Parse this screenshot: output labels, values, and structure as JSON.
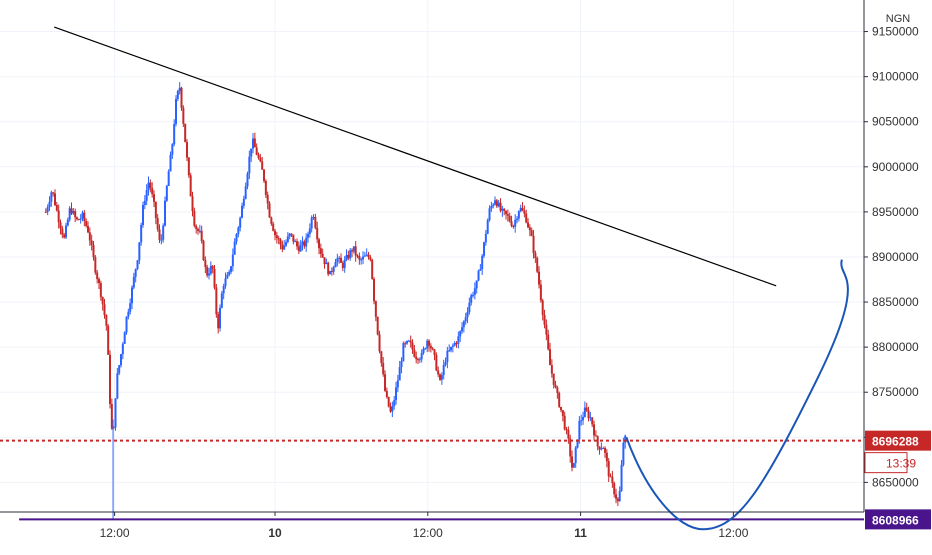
{
  "chart_data": {
    "type": "candlestick",
    "currency": "NGN",
    "ylim": [
      8575000,
      9185000
    ],
    "xlim": [
      -60,
      1160
    ],
    "yticks": [
      8650000,
      8700000,
      8750000,
      8800000,
      8850000,
      8900000,
      8950000,
      9000000,
      9050000,
      9100000,
      9150000
    ],
    "ytick_labels": [
      "8650000",
      "8700000",
      "8750000",
      "8800000",
      "8850000",
      "8900000",
      "8950000",
      "9000000",
      "9050000",
      "9100000",
      "9150000"
    ],
    "xticks": [
      {
        "x": 90,
        "label": "12:00",
        "bold": false
      },
      {
        "x": 300,
        "label": "10",
        "bold": true
      },
      {
        "x": 500,
        "label": "12:00",
        "bold": false
      },
      {
        "x": 700,
        "label": "11",
        "bold": true
      },
      {
        "x": 900,
        "label": "12:00",
        "bold": false
      }
    ],
    "grid": true,
    "colors": {
      "up": "#2962ff",
      "down": "#c62828",
      "current_line": "#c62828",
      "support": "#4a148c",
      "trendline": "#000000",
      "projection": "#1a56b8",
      "axis_text": "#333333"
    },
    "price_series": [
      [
        0,
        8950000
      ],
      [
        8,
        8975000
      ],
      [
        16,
        8945000
      ],
      [
        24,
        8920000
      ],
      [
        32,
        8955000
      ],
      [
        40,
        8940000
      ],
      [
        48,
        8945000
      ],
      [
        56,
        8928000
      ],
      [
        64,
        8890000
      ],
      [
        72,
        8860000
      ],
      [
        80,
        8820000
      ],
      [
        85,
        8720000
      ],
      [
        88,
        8695000
      ],
      [
        92,
        8760000
      ],
      [
        98,
        8790000
      ],
      [
        105,
        8830000
      ],
      [
        112,
        8860000
      ],
      [
        120,
        8900000
      ],
      [
        128,
        8960000
      ],
      [
        135,
        8985000
      ],
      [
        142,
        8955000
      ],
      [
        150,
        8910000
      ],
      [
        155,
        8950000
      ],
      [
        160,
        8990000
      ],
      [
        165,
        9020000
      ],
      [
        170,
        9070000
      ],
      [
        175,
        9090000
      ],
      [
        180,
        9050000
      ],
      [
        188,
        8980000
      ],
      [
        195,
        8935000
      ],
      [
        202,
        8925000
      ],
      [
        210,
        8880000
      ],
      [
        218,
        8890000
      ],
      [
        225,
        8820000
      ],
      [
        232,
        8870000
      ],
      [
        240,
        8880000
      ],
      [
        248,
        8920000
      ],
      [
        255,
        8945000
      ],
      [
        262,
        8985000
      ],
      [
        270,
        9030000
      ],
      [
        278,
        9010000
      ],
      [
        285,
        8990000
      ],
      [
        292,
        8950000
      ],
      [
        300,
        8925000
      ],
      [
        310,
        8910000
      ],
      [
        320,
        8925000
      ],
      [
        330,
        8910000
      ],
      [
        340,
        8915000
      ],
      [
        350,
        8950000
      ],
      [
        358,
        8910000
      ],
      [
        365,
        8895000
      ],
      [
        372,
        8880000
      ],
      [
        380,
        8900000
      ],
      [
        388,
        8890000
      ],
      [
        395,
        8900000
      ],
      [
        402,
        8910000
      ],
      [
        410,
        8895000
      ],
      [
        418,
        8900000
      ],
      [
        425,
        8900000
      ],
      [
        430,
        8850000
      ],
      [
        438,
        8790000
      ],
      [
        445,
        8745000
      ],
      [
        452,
        8725000
      ],
      [
        460,
        8760000
      ],
      [
        468,
        8800000
      ],
      [
        476,
        8805000
      ],
      [
        484,
        8790000
      ],
      [
        492,
        8790000
      ],
      [
        500,
        8810000
      ],
      [
        508,
        8790000
      ],
      [
        516,
        8760000
      ],
      [
        524,
        8790000
      ],
      [
        532,
        8800000
      ],
      [
        540,
        8810000
      ],
      [
        548,
        8830000
      ],
      [
        556,
        8855000
      ],
      [
        564,
        8870000
      ],
      [
        572,
        8905000
      ],
      [
        580,
        8950000
      ],
      [
        588,
        8965000
      ],
      [
        596,
        8950000
      ],
      [
        604,
        8945000
      ],
      [
        612,
        8935000
      ],
      [
        620,
        8955000
      ],
      [
        628,
        8945000
      ],
      [
        636,
        8920000
      ],
      [
        644,
        8880000
      ],
      [
        652,
        8830000
      ],
      [
        660,
        8780000
      ],
      [
        668,
        8750000
      ],
      [
        676,
        8725000
      ],
      [
        684,
        8695000
      ],
      [
        690,
        8660000
      ],
      [
        698,
        8715000
      ],
      [
        706,
        8730000
      ],
      [
        714,
        8720000
      ],
      [
        722,
        8690000
      ],
      [
        730,
        8690000
      ],
      [
        738,
        8655000
      ],
      [
        744,
        8640000
      ],
      [
        750,
        8625000
      ],
      [
        756,
        8695000
      ],
      [
        760,
        8700000
      ]
    ],
    "current_price": 8696288,
    "current_price_label": "8696288",
    "countdown_label": "13:39",
    "support_price": 8608966,
    "support_label": "8608966",
    "trendline": {
      "x1": 11,
      "y1": 9155000,
      "x2": 956,
      "y2": 8868000
    },
    "support_line_x": [
      -35,
      1160
    ],
    "projection": {
      "x_start": 760,
      "x_end": 1042,
      "y_start": 8700000,
      "y_min": 8598000,
      "y_end": 8897000,
      "x_min": 860
    }
  }
}
